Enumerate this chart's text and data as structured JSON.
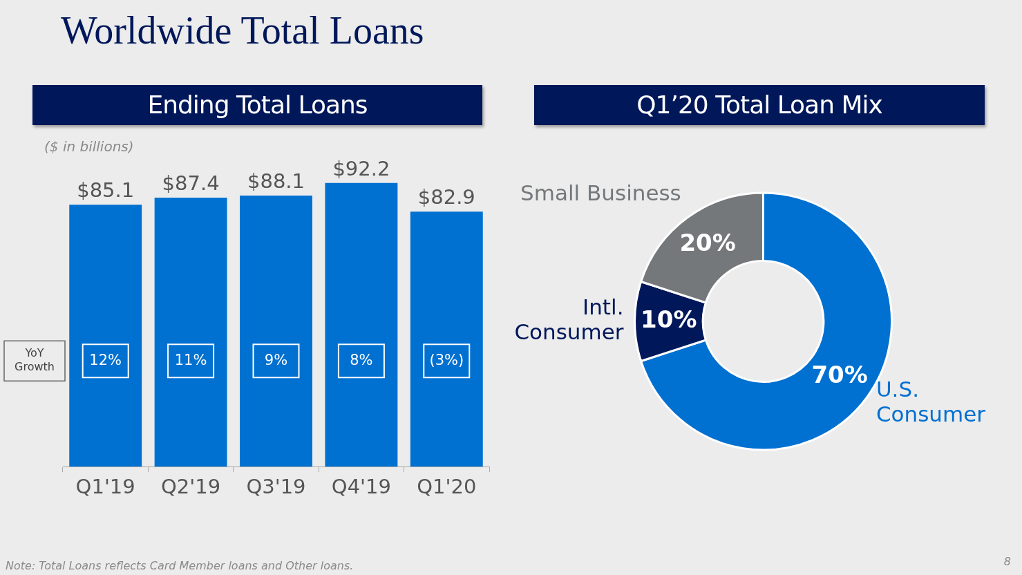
{
  "chart_data": [
    {
      "type": "other",
      "title": "Worldwide Total Loans",
      "annotations": [
        "Note: Total Loans reflects Card Member loans and Other loans.",
        "8"
      ]
    },
    {
      "type": "bar",
      "title": "Ending Total Loans",
      "subtitle": "($ in billions)",
      "categories": [
        "Q1'19",
        "Q2'19",
        "Q3'19",
        "Q4'19",
        "Q1'20"
      ],
      "values": [
        85.1,
        87.4,
        88.1,
        92.2,
        82.9
      ],
      "value_labels": [
        "$85.1",
        "$87.4",
        "$88.1",
        "$92.2",
        "$82.9"
      ],
      "color": "#0070d1",
      "tick_labels": "x",
      "annotations": [
        "YoY Growth",
        "12%",
        "11%",
        "9%",
        "8%",
        "(3%)"
      ]
    },
    {
      "type": "donut",
      "title": "Q1’20 Total Loan Mix",
      "categories": [
        "U.S. Consumer",
        "Intl. Consumer",
        "Small Business"
      ],
      "values": [
        70,
        10,
        20
      ],
      "colors": [
        "#0070d1",
        "#00175a",
        "#75787b"
      ],
      "value_labels": [
        "70%",
        "10%",
        "20%"
      ]
    }
  ]
}
